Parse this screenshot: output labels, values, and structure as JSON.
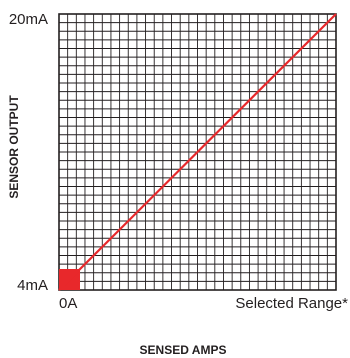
{
  "chart_data": {
    "type": "line",
    "title": "",
    "xlabel": "SENSED AMPS",
    "ylabel": "SENSOR OUTPUT",
    "x_ticks": [
      "0A",
      "Selected Range*"
    ],
    "y_ticks": [
      "20mA",
      "4mA"
    ],
    "xlim": [
      0,
      1
    ],
    "ylim": [
      4,
      20
    ],
    "grid": true,
    "series": [
      {
        "x": [
          0,
          1
        ],
        "y": [
          4,
          20
        ],
        "color": "#e8282b"
      }
    ],
    "origin_marker_color": "#e8282b",
    "grid_color": "#231f20"
  }
}
